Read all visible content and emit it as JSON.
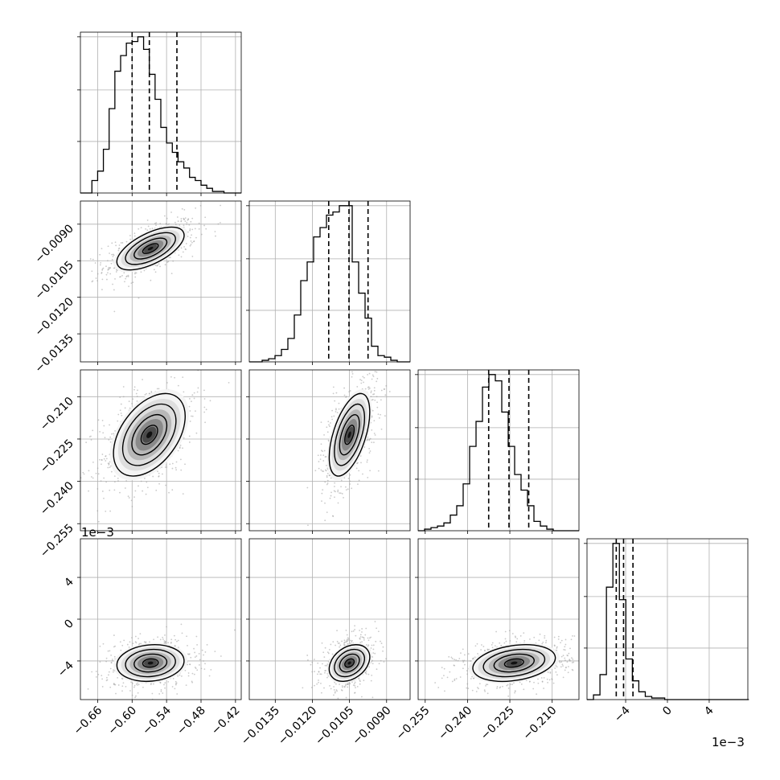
{
  "chart_data": {
    "type": "corner",
    "description_params": 4,
    "panels": [
      {
        "type": "histogram",
        "row": 0,
        "col": 0,
        "param": 0,
        "xlim": [
          -0.69,
          -0.41
        ],
        "x_ticks": [
          -0.66,
          -0.6,
          -0.54,
          -0.48,
          -0.42
        ],
        "bin_edges_start": -0.69,
        "bin_width": 0.01,
        "counts": [
          0,
          0,
          0.08,
          0.14,
          0.28,
          0.54,
          0.78,
          0.88,
          0.96,
          0.97,
          1.0,
          0.92,
          0.76,
          0.6,
          0.42,
          0.32,
          0.26,
          0.2,
          0.16,
          0.1,
          0.08,
          0.05,
          0.03,
          0.01,
          0.01,
          0,
          0,
          0
        ],
        "quantiles": [
          -0.6,
          -0.57,
          -0.522
        ]
      },
      {
        "type": "histogram",
        "row": 1,
        "col": 1,
        "param": 1,
        "xlim": [
          -0.01455,
          -0.00805
        ],
        "x_ticks": [
          -0.0135,
          -0.012,
          -0.0105,
          -0.009
        ],
        "bin_edges_start": -0.01455,
        "bin_width": 0.00026,
        "counts": [
          0,
          0,
          0.01,
          0.02,
          0.04,
          0.08,
          0.15,
          0.3,
          0.52,
          0.64,
          0.8,
          0.86,
          0.94,
          0.96,
          1.0,
          1.0,
          0.64,
          0.44,
          0.28,
          0.1,
          0.04,
          0.03,
          0.01,
          0,
          0
        ],
        "quantiles": [
          -0.01134,
          -0.01052,
          -0.00975
        ]
      },
      {
        "type": "histogram",
        "row": 2,
        "col": 2,
        "param": 2,
        "xlim": [
          -0.2575,
          -0.2005
        ],
        "x_ticks": [
          -0.255,
          -0.24,
          -0.225,
          -0.21
        ],
        "bin_edges_start": -0.2575,
        "bin_width": 0.00228,
        "counts": [
          0,
          0.01,
          0.02,
          0.03,
          0.05,
          0.1,
          0.16,
          0.3,
          0.54,
          0.7,
          0.92,
          1.0,
          0.96,
          0.76,
          0.54,
          0.36,
          0.26,
          0.16,
          0.06,
          0.03,
          0.01,
          0,
          0,
          0,
          0
        ],
        "quantiles": [
          -0.2325,
          -0.2253,
          -0.2183
        ]
      },
      {
        "type": "histogram",
        "row": 3,
        "col": 3,
        "param": 3,
        "xlim": [
          -0.0077,
          0.0077
        ],
        "x_ticks": [
          -0.004,
          0,
          0.004
        ],
        "offset_text": "1e−3",
        "bin_edges_start": -0.0077,
        "bin_width": 0.00062,
        "counts": [
          0,
          0.03,
          0.16,
          0.72,
          1.0,
          0.64,
          0.26,
          0.12,
          0.05,
          0.02,
          0.01,
          0.01,
          0,
          0,
          0,
          0,
          0,
          0,
          0,
          0,
          0,
          0,
          0,
          0,
          0
        ],
        "quantiles": [
          -0.0049,
          -0.0042,
          -0.0033
        ]
      },
      {
        "type": "density2d",
        "row": 1,
        "col": 0,
        "x_param": 0,
        "y_param": 1,
        "mean": [
          -0.568,
          -0.01
        ],
        "sd": [
          0.03,
          0.00045
        ],
        "corr": 0.62
      },
      {
        "type": "density2d",
        "row": 2,
        "col": 0,
        "x_param": 0,
        "y_param": 2,
        "mean": [
          -0.57,
          -0.2235
        ],
        "sd": [
          0.032,
          0.0075
        ],
        "corr": 0.45
      },
      {
        "type": "density2d",
        "row": 2,
        "col": 1,
        "x_param": 1,
        "y_param": 2,
        "mean": [
          -0.0105,
          -0.2235
        ],
        "sd": [
          0.00042,
          0.0075
        ],
        "corr": 0.55
      },
      {
        "type": "density2d",
        "row": 3,
        "col": 0,
        "x_param": 0,
        "y_param": 3,
        "mean": [
          -0.568,
          -0.0042
        ],
        "sd": [
          0.03,
          0.0009
        ],
        "corr": 0.12
      },
      {
        "type": "density2d",
        "row": 3,
        "col": 1,
        "x_param": 1,
        "y_param": 3,
        "mean": [
          -0.0105,
          -0.0042
        ],
        "sd": [
          0.00042,
          0.0009
        ],
        "corr": 0.32
      },
      {
        "type": "density2d",
        "row": 3,
        "col": 2,
        "x_param": 2,
        "y_param": 3,
        "mean": [
          -0.2235,
          -0.0042
        ],
        "sd": [
          0.0075,
          0.0009
        ],
        "corr": 0.28
      }
    ],
    "y_axes": [
      {
        "row": 1,
        "ylim": [
          -0.01465,
          -0.00805
        ],
        "ticks": [
          -0.009,
          -0.0105,
          -0.012,
          -0.0135
        ]
      },
      {
        "row": 2,
        "ylim": [
          -0.2575,
          -0.2005
        ],
        "ticks": [
          -0.21,
          -0.225,
          -0.24,
          -0.255
        ]
      },
      {
        "row": 3,
        "ylim": [
          -0.0077,
          0.0077
        ],
        "ticks": [
          0.004,
          0,
          -0.004
        ],
        "offset_text": "1e−3"
      }
    ],
    "tick_labels": {
      "p0": [
        "−0.66",
        "−0.60",
        "−0.54",
        "−0.48",
        "−0.42"
      ],
      "p1": [
        "−0.0135",
        "−0.0120",
        "−0.0105",
        "−0.0090"
      ],
      "p2": [
        "−0.255",
        "−0.240",
        "−0.225",
        "−0.210"
      ],
      "p3": [
        "−4",
        "0",
        "4"
      ],
      "y1": [
        "−0.0090",
        "−0.0105",
        "−0.0120",
        "−0.0135"
      ],
      "y2": [
        "−0.210",
        "−0.225",
        "−0.240",
        "−0.255"
      ],
      "y3": [
        "4",
        "0",
        "−4"
      ]
    },
    "grid": true,
    "colors": {
      "line": "#000000",
      "grid": "#b0b0b0",
      "points": "#9e9e9e"
    }
  }
}
